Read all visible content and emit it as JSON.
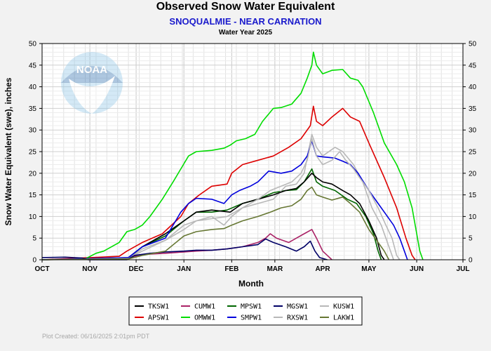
{
  "colors": {
    "background": "#f2f2f2",
    "plot_bg": "#ffffff",
    "grid": "#d8d8d8"
  },
  "logo": {
    "text": "NOAA",
    "icon": "noaa-logo-icon"
  },
  "footer": {
    "created": "Plot Created: 06/16/2025 2:01pm PDT"
  },
  "chart_data": {
    "type": "line",
    "title": "Observed Snow Water Equivalent",
    "subtitle": "SNOQUALMIE - NEAR CARNATION",
    "subtitle2": "Water Year 2025",
    "xlabel": "Month",
    "ylabel": "Snow Water Equivalent (swe),  inches",
    "xlim": [
      0,
      273
    ],
    "ylim": [
      0,
      50
    ],
    "yticks": [
      0,
      5,
      10,
      15,
      20,
      25,
      30,
      35,
      40,
      45,
      50
    ],
    "xticks": [
      {
        "label": "OCT",
        "day": 0
      },
      {
        "label": "NOV",
        "day": 31
      },
      {
        "label": "DEC",
        "day": 61
      },
      {
        "label": "JAN",
        "day": 92
      },
      {
        "label": "FEB",
        "day": 123
      },
      {
        "label": "MAR",
        "day": 151
      },
      {
        "label": "APR",
        "day": 182
      },
      {
        "label": "MAY",
        "day": 212
      },
      {
        "label": "JUN",
        "day": 243
      },
      {
        "label": "JUL",
        "day": 273
      }
    ],
    "grid": true,
    "legend_position": "bottom-center",
    "series": [
      {
        "name": "TKSW1",
        "color": "#000000",
        "points": [
          [
            0,
            0
          ],
          [
            56,
            0.5
          ],
          [
            65,
            3
          ],
          [
            80,
            6
          ],
          [
            92,
            9
          ],
          [
            100,
            11
          ],
          [
            110,
            11.5
          ],
          [
            122,
            11
          ],
          [
            130,
            13
          ],
          [
            140,
            14
          ],
          [
            150,
            15
          ],
          [
            158,
            16
          ],
          [
            165,
            16.5
          ],
          [
            170,
            18
          ],
          [
            175,
            20
          ],
          [
            178,
            19
          ],
          [
            182,
            18
          ],
          [
            188,
            17.5
          ],
          [
            195,
            16
          ],
          [
            200,
            15
          ],
          [
            206,
            13
          ],
          [
            212,
            9
          ],
          [
            217,
            5
          ],
          [
            220,
            1
          ],
          [
            222,
            0
          ]
        ]
      },
      {
        "name": "APSW1",
        "color": "#dd0000",
        "points": [
          [
            0,
            0
          ],
          [
            50,
            0.8
          ],
          [
            55,
            2
          ],
          [
            65,
            4
          ],
          [
            78,
            6
          ],
          [
            90,
            10
          ],
          [
            95,
            13
          ],
          [
            102,
            15
          ],
          [
            110,
            17
          ],
          [
            120,
            17.5
          ],
          [
            123,
            20
          ],
          [
            130,
            22
          ],
          [
            140,
            23
          ],
          [
            150,
            24
          ],
          [
            160,
            26
          ],
          [
            168,
            28
          ],
          [
            174,
            31
          ],
          [
            176,
            35.5
          ],
          [
            178,
            32
          ],
          [
            182,
            31
          ],
          [
            188,
            33
          ],
          [
            195,
            35
          ],
          [
            200,
            33
          ],
          [
            206,
            32
          ],
          [
            212,
            27
          ],
          [
            222,
            19
          ],
          [
            230,
            12
          ],
          [
            236,
            5
          ],
          [
            240,
            1
          ],
          [
            242,
            0
          ]
        ]
      },
      {
        "name": "CUMW1",
        "color": "#aa2266",
        "points": [
          [
            0,
            0
          ],
          [
            55,
            0.3
          ],
          [
            65,
            1.2
          ],
          [
            80,
            1.5
          ],
          [
            92,
            1.8
          ],
          [
            100,
            2
          ],
          [
            110,
            2.2
          ],
          [
            120,
            2.5
          ],
          [
            130,
            3
          ],
          [
            140,
            4
          ],
          [
            145,
            5
          ],
          [
            148,
            6
          ],
          [
            152,
            5
          ],
          [
            160,
            4
          ],
          [
            165,
            5
          ],
          [
            170,
            6
          ],
          [
            175,
            7
          ],
          [
            178,
            5
          ],
          [
            182,
            2
          ],
          [
            185,
            1
          ],
          [
            188,
            0
          ]
        ]
      },
      {
        "name": "OMWW1",
        "color": "#00dd00",
        "points": [
          [
            0,
            0
          ],
          [
            28,
            0.2
          ],
          [
            35,
            1.5
          ],
          [
            40,
            2
          ],
          [
            50,
            4
          ],
          [
            55,
            6.5
          ],
          [
            60,
            7
          ],
          [
            65,
            8
          ],
          [
            70,
            10
          ],
          [
            78,
            14
          ],
          [
            85,
            18
          ],
          [
            90,
            21
          ],
          [
            95,
            24
          ],
          [
            100,
            25
          ],
          [
            110,
            25.3
          ],
          [
            118,
            25.8
          ],
          [
            122,
            26.5
          ],
          [
            126,
            27.5
          ],
          [
            132,
            28
          ],
          [
            138,
            29
          ],
          [
            143,
            32
          ],
          [
            150,
            35
          ],
          [
            155,
            35.2
          ],
          [
            162,
            36
          ],
          [
            168,
            38.5
          ],
          [
            172,
            42
          ],
          [
            175,
            45
          ],
          [
            176,
            48
          ],
          [
            178,
            45
          ],
          [
            182,
            43
          ],
          [
            188,
            43.8
          ],
          [
            195,
            44
          ],
          [
            200,
            42
          ],
          [
            205,
            41.5
          ],
          [
            208,
            40
          ],
          [
            215,
            34
          ],
          [
            222,
            27
          ],
          [
            230,
            22
          ],
          [
            235,
            18
          ],
          [
            240,
            12
          ],
          [
            243,
            6
          ],
          [
            245,
            2
          ],
          [
            247,
            0
          ]
        ]
      },
      {
        "name": "SMPW1",
        "color": "#0000dd",
        "points": [
          [
            0,
            0
          ],
          [
            56,
            0.5
          ],
          [
            65,
            3
          ],
          [
            80,
            5
          ],
          [
            90,
            11
          ],
          [
            95,
            13
          ],
          [
            100,
            14.2
          ],
          [
            110,
            14
          ],
          [
            118,
            13
          ],
          [
            123,
            15
          ],
          [
            128,
            16
          ],
          [
            135,
            17
          ],
          [
            140,
            18
          ],
          [
            147,
            20.5
          ],
          [
            155,
            20
          ],
          [
            162,
            20.5
          ],
          [
            168,
            22
          ],
          [
            172,
            24
          ],
          [
            175,
            27.5
          ],
          [
            178,
            24
          ],
          [
            182,
            23.8
          ],
          [
            190,
            23.5
          ],
          [
            195,
            22.8
          ],
          [
            200,
            22
          ],
          [
            205,
            20
          ],
          [
            212,
            16
          ],
          [
            218,
            13
          ],
          [
            222,
            11
          ],
          [
            228,
            8
          ],
          [
            232,
            5
          ],
          [
            235,
            2
          ],
          [
            237,
            0
          ]
        ]
      },
      {
        "name": "RXSW1",
        "color": "#b8b8b8",
        "points": [
          [
            0,
            0
          ],
          [
            56,
            0.3
          ],
          [
            65,
            2
          ],
          [
            80,
            4.5
          ],
          [
            92,
            8
          ],
          [
            100,
            9
          ],
          [
            110,
            10
          ],
          [
            118,
            8
          ],
          [
            123,
            10
          ],
          [
            130,
            12
          ],
          [
            140,
            14
          ],
          [
            148,
            16
          ],
          [
            155,
            17
          ],
          [
            162,
            18
          ],
          [
            168,
            20
          ],
          [
            172,
            23
          ],
          [
            175,
            28
          ],
          [
            178,
            24
          ],
          [
            182,
            22
          ],
          [
            188,
            23
          ],
          [
            193,
            25
          ],
          [
            197,
            23
          ],
          [
            202,
            21
          ],
          [
            206,
            19
          ],
          [
            212,
            16
          ],
          [
            218,
            12
          ],
          [
            223,
            8
          ],
          [
            227,
            5
          ],
          [
            230,
            1
          ],
          [
            232,
            0
          ]
        ]
      },
      {
        "name": "MGSW1",
        "color": "#000066",
        "points": [
          [
            0,
            0.5
          ],
          [
            15,
            0.6
          ],
          [
            26,
            0.4
          ],
          [
            30,
            0
          ],
          [
            55,
            0
          ],
          [
            60,
            1
          ],
          [
            70,
            1.5
          ],
          [
            80,
            1.8
          ],
          [
            92,
            2
          ],
          [
            100,
            2.2
          ],
          [
            110,
            2.2
          ],
          [
            120,
            2.5
          ],
          [
            130,
            3
          ],
          [
            140,
            3.5
          ],
          [
            145,
            4.8
          ],
          [
            150,
            4
          ],
          [
            158,
            3
          ],
          [
            165,
            2
          ],
          [
            170,
            3
          ],
          [
            174,
            4.3
          ],
          [
            177,
            2
          ],
          [
            180,
            0.5
          ],
          [
            185,
            0
          ]
        ]
      },
      {
        "name": "LAKW1",
        "color": "#667733",
        "points": [
          [
            0,
            0
          ],
          [
            56,
            0.2
          ],
          [
            65,
            1
          ],
          [
            80,
            2
          ],
          [
            92,
            5.5
          ],
          [
            100,
            6.5
          ],
          [
            110,
            7
          ],
          [
            118,
            7.2
          ],
          [
            123,
            8
          ],
          [
            130,
            9
          ],
          [
            140,
            10
          ],
          [
            148,
            11
          ],
          [
            155,
            12
          ],
          [
            162,
            12.5
          ],
          [
            168,
            14
          ],
          [
            172,
            16
          ],
          [
            175,
            16.8
          ],
          [
            178,
            15
          ],
          [
            182,
            14.5
          ],
          [
            188,
            13.8
          ],
          [
            195,
            14.5
          ],
          [
            200,
            13
          ],
          [
            206,
            11
          ],
          [
            212,
            7
          ],
          [
            218,
            4
          ],
          [
            222,
            2
          ],
          [
            225,
            0
          ]
        ]
      }
    ],
    "legend": [
      {
        "name": "TKSW1",
        "color": "#000000"
      },
      {
        "name": "CUMW1",
        "color": "#aa2266"
      },
      {
        "name": "MPSW1",
        "color": "#006600"
      },
      {
        "name": "MGSW1",
        "color": "#000066"
      },
      {
        "name": "KUSW1",
        "color": "#b8b8b8"
      },
      {
        "name": "APSW1",
        "color": "#dd0000"
      },
      {
        "name": "OMWW1",
        "color": "#00dd00"
      },
      {
        "name": "SMPW1",
        "color": "#0000dd"
      },
      {
        "name": "RXSW1",
        "color": "#b8b8b8"
      },
      {
        "name": "LAKW1",
        "color": "#667733"
      }
    ],
    "extra_series": [
      {
        "name": "MPSW1",
        "color": "#006600",
        "points": [
          [
            0,
            0
          ],
          [
            56,
            0.4
          ],
          [
            65,
            3
          ],
          [
            80,
            5.5
          ],
          [
            92,
            9
          ],
          [
            100,
            11
          ],
          [
            110,
            11
          ],
          [
            120,
            11.5
          ],
          [
            130,
            13
          ],
          [
            140,
            14
          ],
          [
            150,
            15.5
          ],
          [
            158,
            16
          ],
          [
            165,
            16.2
          ],
          [
            170,
            18
          ],
          [
            175,
            21
          ],
          [
            178,
            18
          ],
          [
            182,
            17
          ],
          [
            190,
            16
          ],
          [
            198,
            14
          ],
          [
            204,
            13
          ],
          [
            210,
            10
          ],
          [
            215,
            6
          ],
          [
            218,
            2
          ],
          [
            220,
            0
          ]
        ]
      },
      {
        "name": "KUSW1",
        "color": "#b8b8b8",
        "points": [
          [
            0,
            0
          ],
          [
            56,
            0.3
          ],
          [
            65,
            2.5
          ],
          [
            80,
            4.5
          ],
          [
            92,
            7
          ],
          [
            100,
            9
          ],
          [
            110,
            9.5
          ],
          [
            120,
            10
          ],
          [
            130,
            12
          ],
          [
            140,
            13
          ],
          [
            150,
            14
          ],
          [
            158,
            17
          ],
          [
            165,
            17.5
          ],
          [
            170,
            20
          ],
          [
            175,
            29
          ],
          [
            178,
            26
          ],
          [
            182,
            24
          ],
          [
            190,
            26
          ],
          [
            195,
            25
          ],
          [
            202,
            22
          ],
          [
            208,
            18
          ],
          [
            214,
            12
          ],
          [
            220,
            8
          ],
          [
            225,
            3
          ],
          [
            228,
            0
          ]
        ]
      }
    ]
  }
}
